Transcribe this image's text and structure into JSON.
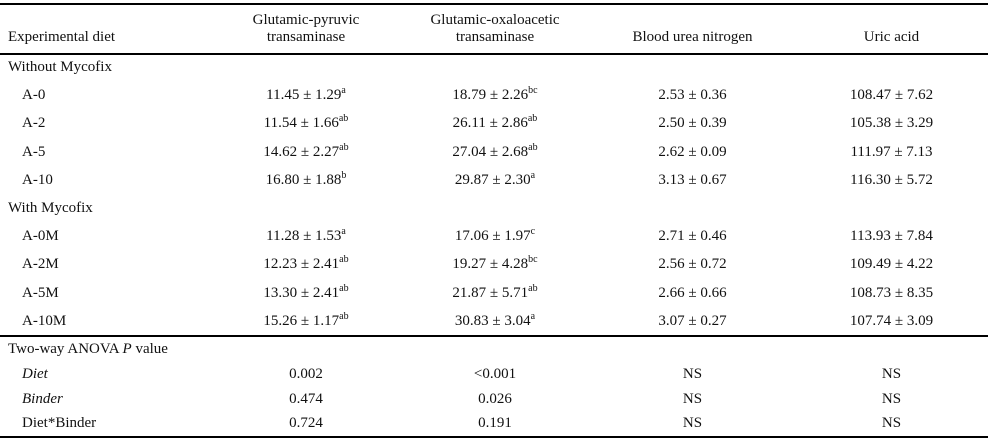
{
  "header": {
    "columns": [
      "Experimental diet",
      "Glutamic-pyruvic transaminase",
      "Glutamic-oxaloacetic transaminase",
      "Blood urea nitrogen",
      "Uric acid"
    ]
  },
  "sections": [
    {
      "title": "Without Mycofix",
      "rows": [
        {
          "diet": "A-0",
          "values": [
            {
              "text": "11.45 ± 1.29",
              "sup": "a"
            },
            {
              "text": "18.79 ± 2.26",
              "sup": "bc"
            },
            {
              "text": "2.53 ± 0.36"
            },
            {
              "text": "108.47 ± 7.62"
            }
          ]
        },
        {
          "diet": "A-2",
          "values": [
            {
              "text": "11.54 ± 1.66",
              "sup": "ab"
            },
            {
              "text": "26.11 ± 2.86",
              "sup": "ab"
            },
            {
              "text": "2.50 ± 0.39"
            },
            {
              "text": "105.38 ± 3.29"
            }
          ]
        },
        {
          "diet": "A-5",
          "values": [
            {
              "text": "14.62 ± 2.27",
              "sup": "ab"
            },
            {
              "text": "27.04 ± 2.68",
              "sup": "ab"
            },
            {
              "text": "2.62 ± 0.09"
            },
            {
              "text": "111.97 ± 7.13"
            }
          ]
        },
        {
          "diet": "A-10",
          "values": [
            {
              "text": "16.80 ± 1.88",
              "sup": "b"
            },
            {
              "text": "29.87 ± 2.30",
              "sup": "a"
            },
            {
              "text": "3.13 ± 0.67"
            },
            {
              "text": "116.30 ± 5.72"
            }
          ]
        }
      ]
    },
    {
      "title": "With Mycofix",
      "rows": [
        {
          "diet": "A-0M",
          "values": [
            {
              "text": "11.28 ± 1.53",
              "sup": "a"
            },
            {
              "text": "17.06 ± 1.97",
              "sup": "c"
            },
            {
              "text": "2.71 ± 0.46"
            },
            {
              "text": "113.93 ± 7.84"
            }
          ]
        },
        {
          "diet": "A-2M",
          "values": [
            {
              "text": "12.23 ± 2.41",
              "sup": "ab"
            },
            {
              "text": "19.27 ± 4.28",
              "sup": "bc"
            },
            {
              "text": "2.56 ± 0.72"
            },
            {
              "text": "109.49 ± 4.22"
            }
          ]
        },
        {
          "diet": "A-5M",
          "values": [
            {
              "text": "13.30 ± 2.41",
              "sup": "ab"
            },
            {
              "text": "21.87 ± 5.71",
              "sup": "ab"
            },
            {
              "text": "2.66 ± 0.66"
            },
            {
              "text": "108.73 ± 8.35"
            }
          ]
        },
        {
          "diet": "A-10M",
          "values": [
            {
              "text": "15.26 ± 1.17",
              "sup": "ab"
            },
            {
              "text": "30.83 ± 3.04",
              "sup": "a"
            },
            {
              "text": "3.07 ± 0.27"
            },
            {
              "text": "107.74 ± 3.09"
            }
          ]
        }
      ]
    }
  ],
  "anova": {
    "title_parts": {
      "pre": "Two-way ANOVA ",
      "italic": "P",
      "post": " value"
    },
    "rows": [
      {
        "label": "Diet",
        "label_italic": true,
        "values": [
          "0.002",
          "<0.001",
          "NS",
          "NS"
        ]
      },
      {
        "label": "Binder",
        "label_italic": true,
        "values": [
          "0.474",
          "0.026",
          "NS",
          "NS"
        ]
      },
      {
        "label": "Diet*Binder",
        "label_italic": false,
        "values": [
          "0.724",
          "0.191",
          "NS",
          "NS"
        ]
      }
    ]
  }
}
